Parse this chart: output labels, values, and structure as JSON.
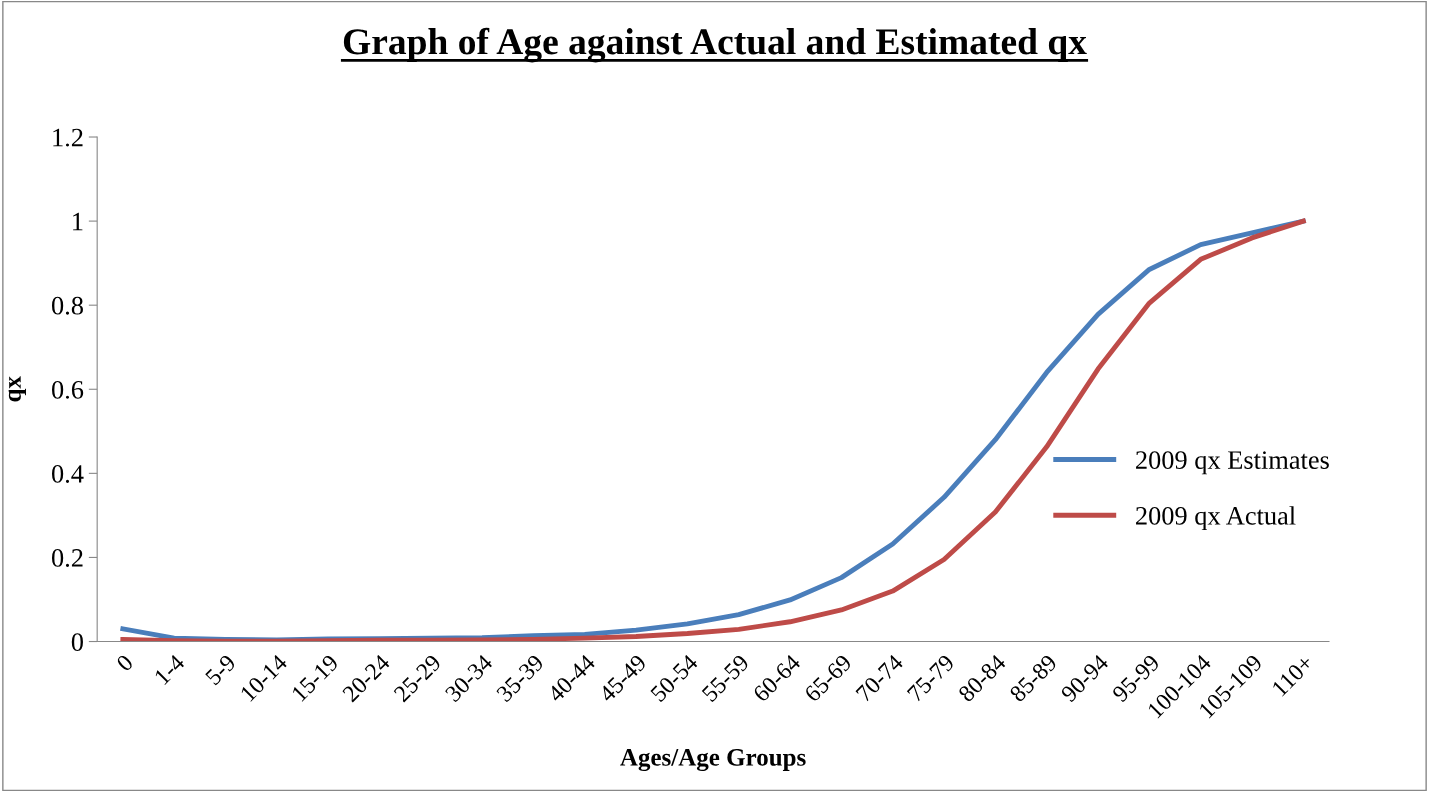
{
  "chart_data": {
    "type": "line",
    "title": "Graph of Age against Actual and Estimated qx",
    "xlabel": "Ages/Age Groups",
    "ylabel": "qx",
    "categories": [
      "0",
      "1-4",
      "5-9",
      "10-14",
      "15-19",
      "20-24",
      "25-29",
      "30-34",
      "35-39",
      "40-44",
      "45-49",
      "50-54",
      "55-59",
      "60-64",
      "65-69",
      "70-74",
      "75-79",
      "80-84",
      "85-89",
      "90-94",
      "95-99",
      "100-104",
      "105-109",
      "110+"
    ],
    "series": [
      {
        "name": "2009 qx Estimates",
        "color": "#4a7ebb",
        "values": [
          0.03,
          0.008,
          0.005,
          0.004,
          0.006,
          0.007,
          0.008,
          0.009,
          0.014,
          0.017,
          0.027,
          0.042,
          0.064,
          0.099,
          0.152,
          0.232,
          0.343,
          0.48,
          0.64,
          0.778,
          0.885,
          0.944,
          0.972,
          1
        ]
      },
      {
        "name": "2009 qx Actual",
        "color": "#be4b48",
        "values": [
          0.005,
          0.002,
          0.001,
          0.001,
          0.002,
          0.003,
          0.003,
          0.004,
          0.005,
          0.008,
          0.012,
          0.019,
          0.029,
          0.047,
          0.075,
          0.12,
          0.195,
          0.308,
          0.463,
          0.648,
          0.805,
          0.909,
          0.96,
          1
        ]
      }
    ],
    "ylim": [
      0,
      1.2
    ],
    "yticks": [
      0,
      0.2,
      0.4,
      0.6,
      0.8,
      1,
      1.2
    ],
    "legend": "right",
    "grid": false,
    "marker": "none",
    "line_style": "solid"
  }
}
